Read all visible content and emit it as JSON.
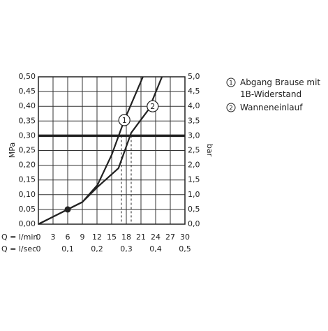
{
  "chart_data": {
    "type": "line",
    "xlabel": "Q = l/min",
    "x2label": "Q = l/sec",
    "ylabel": "MPa",
    "y2label": "bar",
    "xlim": [
      0,
      30
    ],
    "xticks": [
      0,
      3,
      6,
      9,
      12,
      15,
      18,
      21,
      24,
      27,
      30
    ],
    "x2ticks": [
      {
        "value": 0,
        "label": "0"
      },
      {
        "value": 6,
        "label": "0,1"
      },
      {
        "value": 12,
        "label": "0,2"
      },
      {
        "value": 18,
        "label": "0,3"
      },
      {
        "value": 24,
        "label": "0,4"
      },
      {
        "value": 30,
        "label": "0,5"
      }
    ],
    "ylim": [
      0,
      0.5
    ],
    "yticks": [
      {
        "value": 0,
        "label": "0,00"
      },
      {
        "value": 0.05,
        "label": "0,05"
      },
      {
        "value": 0.1,
        "label": "0,10"
      },
      {
        "value": 0.15,
        "label": "0,15"
      },
      {
        "value": 0.2,
        "label": "0,20"
      },
      {
        "value": 0.25,
        "label": "0,25"
      },
      {
        "value": 0.3,
        "label": "0,30"
      },
      {
        "value": 0.35,
        "label": "0,35"
      },
      {
        "value": 0.4,
        "label": "0,40"
      },
      {
        "value": 0.45,
        "label": "0,45"
      },
      {
        "value": 0.5,
        "label": "0,50"
      }
    ],
    "y2lim": [
      0,
      5
    ],
    "y2ticks": [
      {
        "value": 0,
        "label": "0,0"
      },
      {
        "value": 0.5,
        "label": "0,5"
      },
      {
        "value": 1,
        "label": "1,0"
      },
      {
        "value": 1.5,
        "label": "1,5"
      },
      {
        "value": 2,
        "label": "2,0"
      },
      {
        "value": 2.5,
        "label": "2,5"
      },
      {
        "value": 3,
        "label": "3,0"
      },
      {
        "value": 3.5,
        "label": "3,5"
      },
      {
        "value": 4,
        "label": "4,0"
      },
      {
        "value": 4.5,
        "label": "4,5"
      },
      {
        "value": 5,
        "label": "5,0"
      }
    ],
    "grid": true,
    "hline": 0.3,
    "dashed_lines": [
      17,
      19
    ],
    "point": [
      6,
      0.05
    ],
    "series": [
      {
        "name": "Abgang Brause mit 1B-Widerstand",
        "marker_label": "1",
        "marker_at": [
          17.6,
          0.353
        ],
        "color": "#222222",
        "x": [
          0,
          3,
          6,
          9,
          12.1,
          15,
          17.6,
          21.4
        ],
        "values": [
          0,
          0.025,
          0.05,
          0.075,
          0.133,
          0.235,
          0.353,
          0.5
        ]
      },
      {
        "name": "Wanneneinlauf",
        "marker_label": "2",
        "marker_at": [
          23.4,
          0.4
        ],
        "color": "#222222",
        "x": [
          0,
          3,
          6,
          9,
          12.1,
          16.4,
          19,
          22.6,
          25.3
        ],
        "values": [
          0,
          0.025,
          0.05,
          0.075,
          0.126,
          0.19,
          0.31,
          0.39,
          0.5
        ]
      }
    ]
  }
}
